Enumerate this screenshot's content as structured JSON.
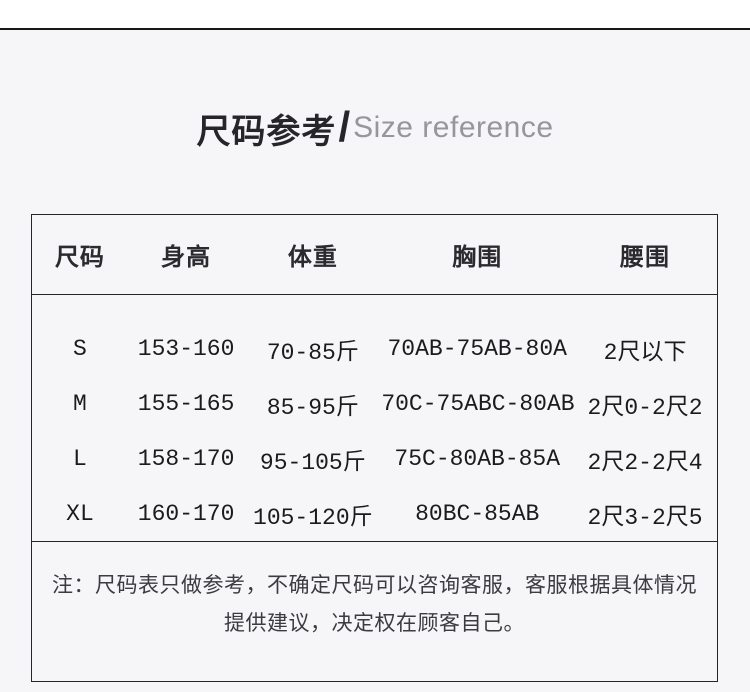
{
  "page": {
    "background_color": "#f6f6f9",
    "top_strip_color": "#ffffff",
    "divider_color": "#17171a",
    "table_border_color": "#26262a"
  },
  "title": {
    "zh": "尺码参考",
    "divider": "/",
    "en": "Size reference"
  },
  "size_table": {
    "headers": [
      "尺码",
      "身高",
      "体重",
      "胸围",
      "腰围"
    ],
    "rows": [
      [
        "S",
        "153-160",
        "70-85斤",
        "70AB-75AB-80A",
        "2尺以下"
      ],
      [
        "M",
        "155-165",
        "85-95斤",
        "70C-75ABC-80AB",
        "2尺0-2尺2"
      ],
      [
        "L",
        "158-170",
        "95-105斤",
        "75C-80AB-85A",
        "2尺2-2尺4"
      ],
      [
        "XL",
        "160-170",
        "105-120斤",
        "80BC-85AB",
        "2尺3-2尺5"
      ]
    ],
    "note_line1": "注：尺码表只做参考，不确定尺码可以咨询客服，客服根据具体情况",
    "note_line2": "提供建议，决定权在顾客自己。"
  }
}
